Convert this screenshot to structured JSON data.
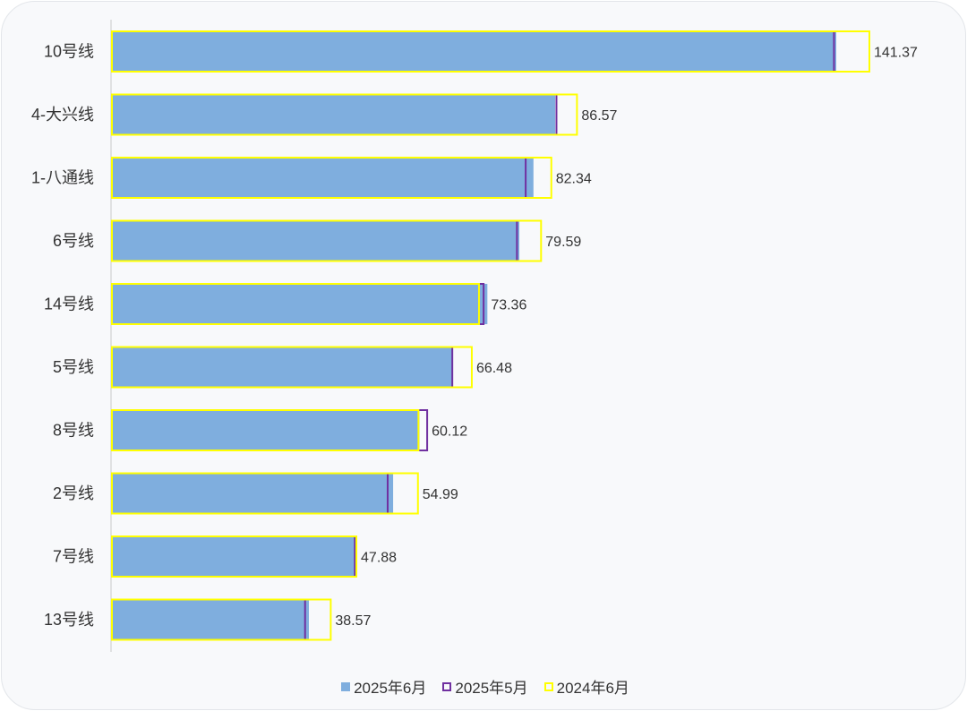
{
  "chart_data": {
    "type": "bar",
    "orientation": "horizontal",
    "categories": [
      "10号线",
      "4-大兴线",
      "1-八通线",
      "6号线",
      "14号线",
      "5号线",
      "8号线",
      "2号线",
      "7号线",
      "13号线"
    ],
    "series": [
      {
        "name": "2025年6月",
        "style": "filled",
        "color": "#7faede",
        "values": [
          141.37,
          86.57,
          82.34,
          79.59,
          73.36,
          66.48,
          60.12,
          54.99,
          47.88,
          38.57
        ]
      },
      {
        "name": "2025年5月",
        "style": "outline",
        "color": "#7030a0",
        "values": [
          141.1,
          87.0,
          81.0,
          79.3,
          72.8,
          66.7,
          61.8,
          54.1,
          47.7,
          38.0
        ]
      },
      {
        "name": "2024年6月",
        "style": "outline",
        "color": "#ffff00",
        "values": [
          148.0,
          91.0,
          86.0,
          84.0,
          71.9,
          70.5,
          60.1,
          60.0,
          48.0,
          43.0
        ]
      }
    ],
    "data_labels": [
      "141.37",
      "86.57",
      "82.34",
      "79.59",
      "73.36",
      "66.48",
      "60.12",
      "54.99",
      "47.88",
      "38.57"
    ],
    "data_label_series": "2025年6月",
    "xlim": [
      0,
      160
    ],
    "legend_position": "bottom",
    "grid": false,
    "title": "",
    "xlabel": "",
    "ylabel": ""
  }
}
